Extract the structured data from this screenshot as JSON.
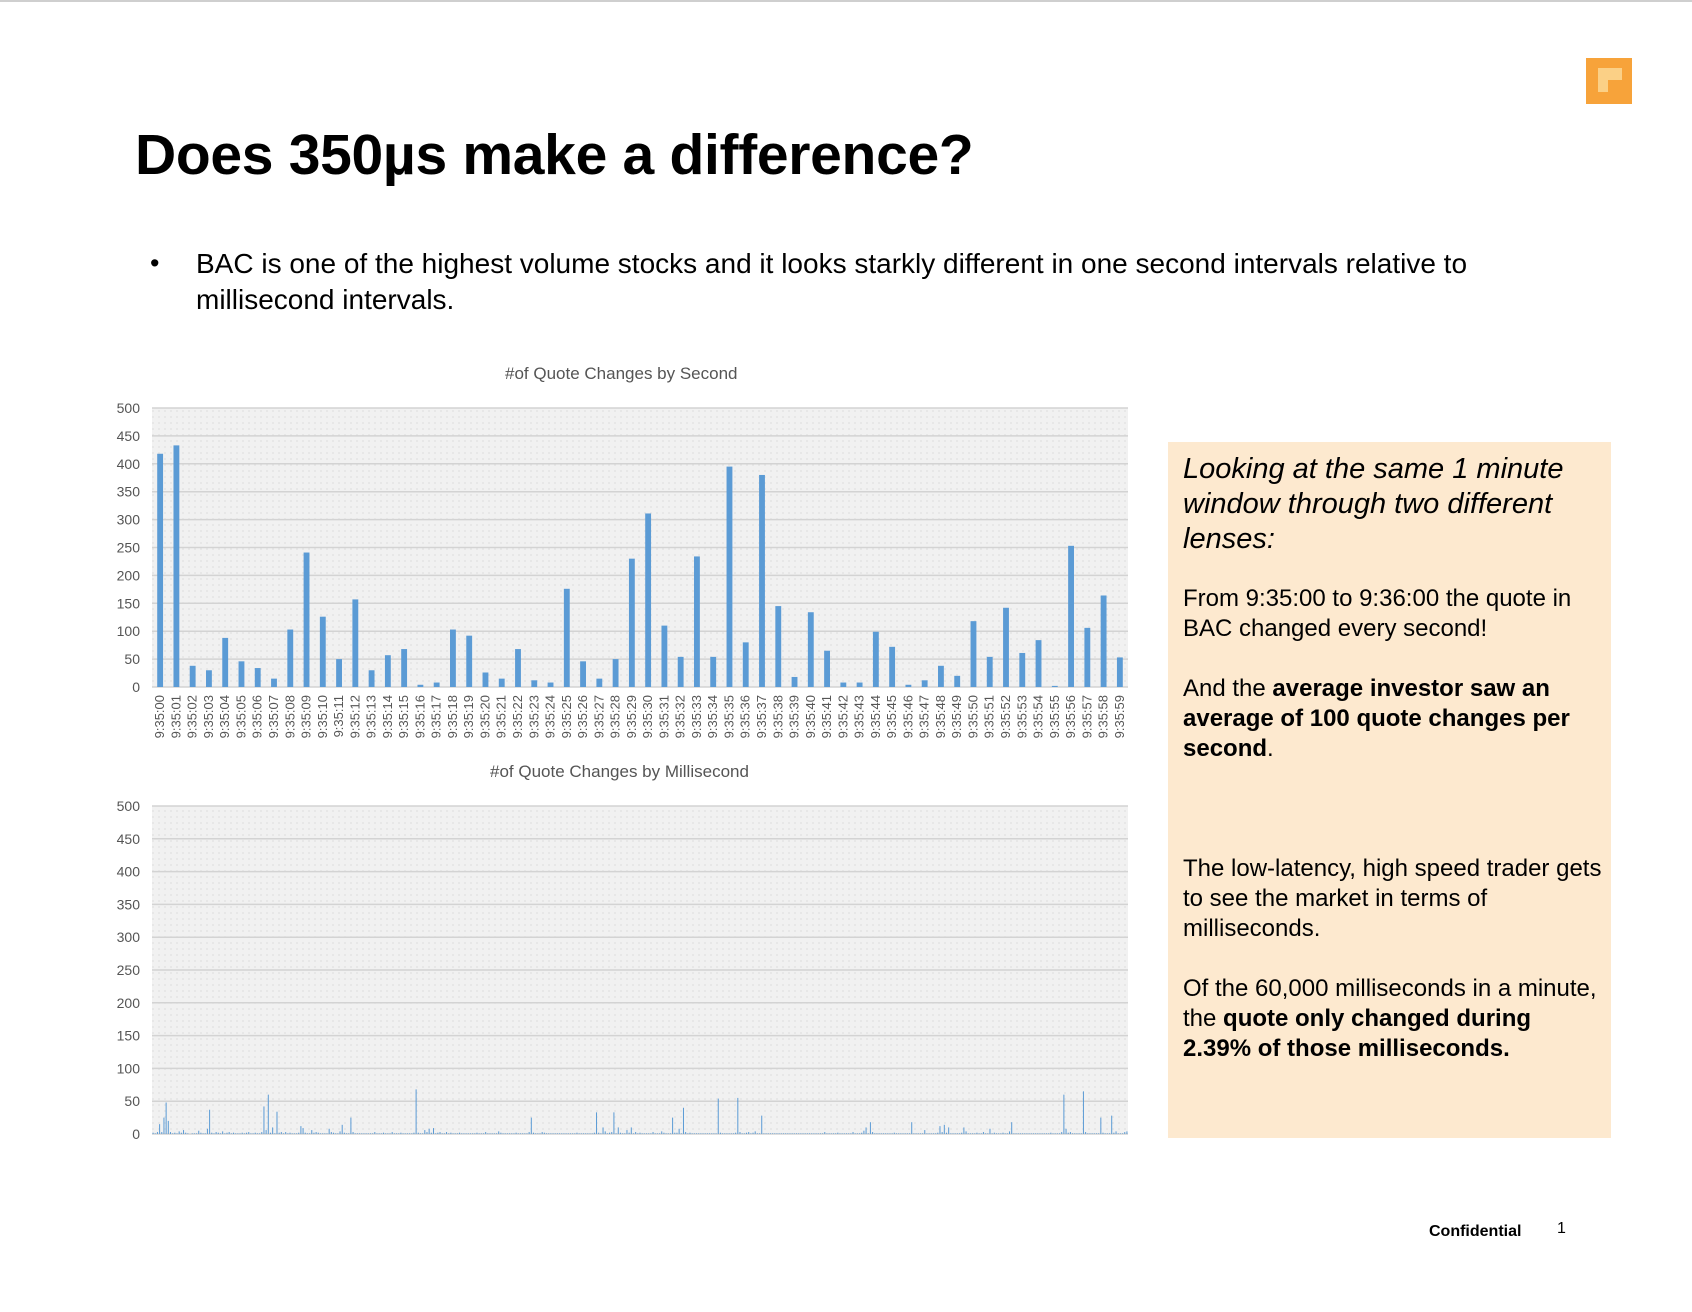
{
  "title": "Does 350µs make a difference?",
  "bullet": {
    "symbol": "•",
    "text": "BAC is one of the highest volume stocks and it looks starkly different in one second intervals relative to millisecond intervals."
  },
  "callout": {
    "intro": "Looking at the same 1 minute window through two different lenses:",
    "p2": "From 9:35:00 to 9:36:00 the quote in BAC changed every second!",
    "p3_a": "And the ",
    "p3_b": "average investor saw an average of 100 quote changes per second",
    "p3_c": ".",
    "p4": "The low-latency, high speed trader gets to see the market in terms of milliseconds.",
    "p5_a": "Of the 60,000 milliseconds in a minute, the ",
    "p5_b": "quote only changed during 2.39% of those milliseconds."
  },
  "footer": {
    "confidential": "Confidential",
    "page_number": "1"
  },
  "colors": {
    "bar": "#5b9bd5",
    "callout_bg": "#fde9cf",
    "logo": "#f7a33a"
  },
  "chart_data": [
    {
      "type": "bar",
      "title": "#of Quote Changes by Second",
      "ylim": [
        0,
        500
      ],
      "yticks": [
        0,
        50,
        100,
        150,
        200,
        250,
        300,
        350,
        400,
        450,
        500
      ],
      "grid": true,
      "categories": [
        "9:35:00",
        "9:35:01",
        "9:35:02",
        "9:35:03",
        "9:35:04",
        "9:35:05",
        "9:35:06",
        "9:35:07",
        "9:35:08",
        "9:35:09",
        "9:35:10",
        "9:35:11",
        "9:35:12",
        "9:35:13",
        "9:35:14",
        "9:35:15",
        "9:35:16",
        "9:35:17",
        "9:35:18",
        "9:35:19",
        "9:35:20",
        "9:35:21",
        "9:35:22",
        "9:35:23",
        "9:35:24",
        "9:35:25",
        "9:35:26",
        "9:35:27",
        "9:35:28",
        "9:35:29",
        "9:35:30",
        "9:35:31",
        "9:35:32",
        "9:35:33",
        "9:35:34",
        "9:35:35",
        "9:35:36",
        "9:35:37",
        "9:35:38",
        "9:35:39",
        "9:35:40",
        "9:35:41",
        "9:35:42",
        "9:35:43",
        "9:35:44",
        "9:35:45",
        "9:35:46",
        "9:35:47",
        "9:35:48",
        "9:35:49",
        "9:35:50",
        "9:35:51",
        "9:35:52",
        "9:35:53",
        "9:35:54",
        "9:35:55",
        "9:35:56",
        "9:35:57",
        "9:35:58",
        "9:35:59"
      ],
      "values": [
        418,
        433,
        38,
        30,
        88,
        46,
        34,
        15,
        103,
        241,
        126,
        50,
        157,
        30,
        57,
        68,
        4,
        8,
        103,
        92,
        26,
        15,
        68,
        12,
        8,
        176,
        46,
        15,
        50,
        230,
        311,
        110,
        54,
        234,
        54,
        395,
        80,
        380,
        145,
        18,
        134,
        65,
        8,
        8,
        99,
        72,
        4,
        12,
        38,
        20,
        118,
        54,
        142,
        61,
        84,
        2,
        253,
        106,
        164,
        53
      ]
    },
    {
      "type": "bar",
      "title": "#of Quote Changes by Millisecond",
      "ylim": [
        0,
        500
      ],
      "yticks": [
        0,
        50,
        100,
        150,
        200,
        250,
        300,
        350,
        400,
        450,
        500
      ],
      "grid": true,
      "values": [
        2,
        1,
        3,
        15,
        3,
        25,
        48,
        20,
        3,
        1,
        2,
        1,
        4,
        2,
        6,
        2,
        1,
        0,
        1,
        1,
        1,
        5,
        2,
        1,
        1,
        8,
        37,
        2,
        1,
        3,
        2,
        1,
        4,
        1,
        2,
        3,
        1,
        2,
        1,
        1,
        1,
        2,
        1,
        2,
        3,
        1,
        1,
        2,
        1,
        1,
        3,
        42,
        6,
        60,
        2,
        10,
        1,
        34,
        2,
        3,
        1,
        3,
        1,
        2,
        1,
        1,
        1,
        2,
        12,
        9,
        2,
        1,
        1,
        6,
        2,
        3,
        2,
        1,
        1,
        1,
        1,
        8,
        3,
        2,
        1,
        1,
        4,
        14,
        2,
        1,
        1,
        25,
        3,
        1,
        1,
        1,
        1,
        1,
        1,
        1,
        1,
        1,
        3,
        1,
        1,
        1,
        2,
        1,
        1,
        1,
        3,
        1,
        1,
        1,
        2,
        1,
        1,
        1,
        1,
        1,
        2,
        68,
        2,
        1,
        1,
        6,
        3,
        8,
        2,
        9,
        1,
        2,
        3,
        1,
        1,
        3,
        1,
        2,
        1,
        1,
        1,
        2,
        1,
        1,
        1,
        1,
        1,
        1,
        1,
        2,
        1,
        1,
        1,
        3,
        1,
        1,
        1,
        1,
        1,
        4,
        2,
        1,
        1,
        1,
        1,
        1,
        1,
        2,
        1,
        1,
        1,
        1,
        1,
        3,
        25,
        2,
        1,
        1,
        1,
        3,
        2,
        1,
        1,
        1,
        1,
        1,
        1,
        1,
        1,
        1,
        1,
        1,
        1,
        1,
        1,
        2,
        1,
        1,
        1,
        1,
        1,
        1,
        1,
        2,
        33,
        2,
        1,
        10,
        4,
        1,
        2,
        3,
        33,
        1,
        10,
        2,
        1,
        1,
        6,
        2,
        10,
        1,
        3,
        1,
        2,
        1,
        1,
        1,
        1,
        1,
        3,
        1,
        1,
        1,
        4,
        2,
        1,
        1,
        1,
        25,
        2,
        2,
        8,
        1,
        40,
        3,
        1,
        2,
        1,
        1,
        1,
        1,
        1,
        1,
        1,
        1,
        1,
        1,
        1,
        1,
        54,
        2,
        1,
        1,
        1,
        1,
        1,
        1,
        2,
        55,
        3,
        1,
        1,
        2,
        3,
        1,
        2,
        4,
        1,
        1,
        28,
        1,
        1,
        1,
        1,
        1,
        1,
        1,
        1,
        1,
        1,
        1,
        1,
        1,
        1,
        1,
        1,
        1,
        1,
        1,
        1,
        1,
        1,
        1,
        1,
        1,
        1,
        1,
        1,
        3,
        1,
        1,
        1,
        1,
        1,
        2,
        1,
        1,
        1,
        1,
        1,
        1,
        3,
        1,
        1,
        1,
        2,
        5,
        10,
        1,
        18,
        3,
        1,
        1,
        1,
        1,
        1,
        1,
        1,
        1,
        1,
        2,
        1,
        1,
        1,
        1,
        1,
        1,
        1,
        18,
        1,
        1,
        1,
        1,
        1,
        6,
        1,
        1,
        1,
        1,
        1,
        2,
        12,
        3,
        14,
        2,
        10,
        1,
        1,
        1,
        1,
        1,
        2,
        10,
        4,
        1,
        1,
        1,
        1,
        2,
        1,
        1,
        3,
        1,
        1,
        8,
        1,
        2,
        1,
        1,
        1,
        2,
        1,
        1,
        4,
        18,
        1,
        1,
        1,
        1,
        1,
        1,
        1,
        1,
        1,
        1,
        1,
        1,
        1,
        1,
        1,
        1,
        1,
        2,
        1,
        1,
        1,
        1,
        3,
        60,
        8,
        2,
        3,
        1,
        1,
        1,
        1,
        1,
        65,
        3,
        1,
        1,
        1,
        1,
        1,
        1,
        25,
        2,
        1,
        1,
        1,
        28,
        2,
        4,
        1,
        1,
        1,
        3,
        4
      ]
    }
  ]
}
